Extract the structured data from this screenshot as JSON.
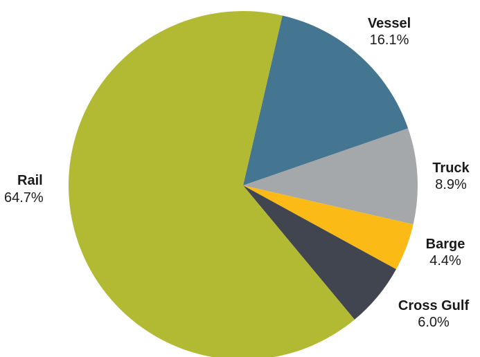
{
  "chart_data": {
    "type": "pie",
    "title": "",
    "start_angle_deg": 13,
    "direction": "clockwise",
    "slices": [
      {
        "name": "Vessel",
        "value": 16.1,
        "label": "16.1%",
        "color": "#447591"
      },
      {
        "name": "Truck",
        "value": 8.9,
        "label": "8.9%",
        "color": "#a5a8aa"
      },
      {
        "name": "Barge",
        "value": 4.4,
        "label": "4.4%",
        "color": "#fbba16"
      },
      {
        "name": "Cross Gulf",
        "value": 6.0,
        "label": "6.0%",
        "color": "#404550"
      },
      {
        "name": "Rail",
        "value": 64.7,
        "label": "64.7%",
        "color": "#b2ba34"
      }
    ]
  }
}
